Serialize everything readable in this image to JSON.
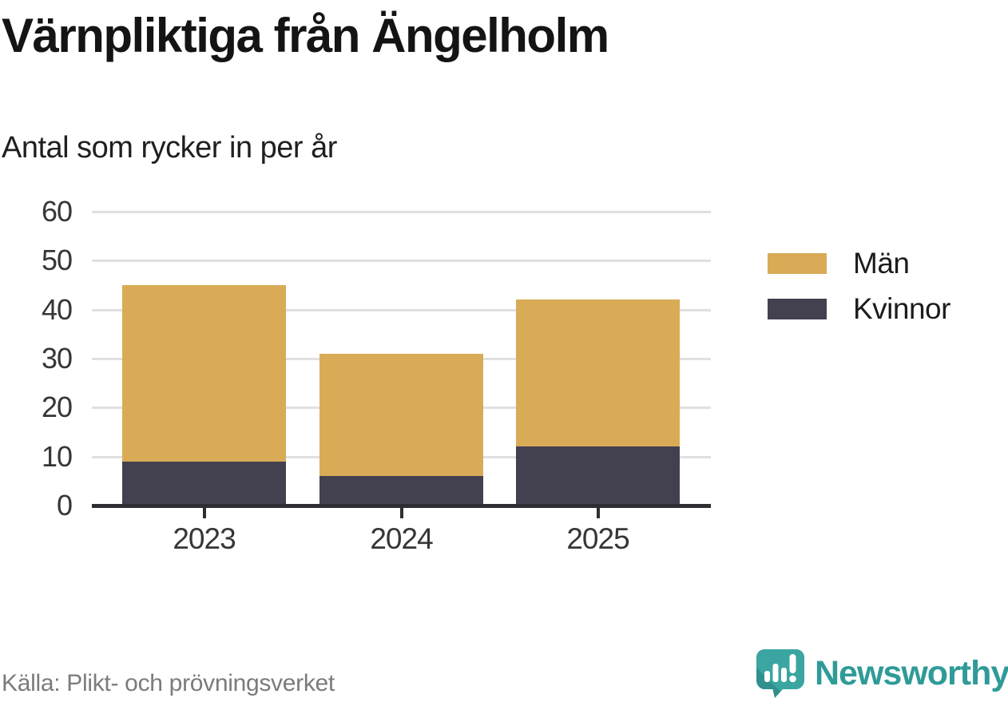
{
  "header": {
    "title": "Värnpliktiga från Ängelholm",
    "subtitle": "Antal som rycker in per år"
  },
  "chart_data": {
    "type": "bar",
    "stacked": true,
    "categories": [
      "2023",
      "2024",
      "2025"
    ],
    "series": [
      {
        "name": "Kvinnor",
        "color": "#434050",
        "values": [
          9,
          6,
          12
        ]
      },
      {
        "name": "Män",
        "color": "#d9ab57",
        "values": [
          36,
          25,
          30
        ]
      }
    ],
    "stack_totals": [
      45,
      31,
      42
    ],
    "y_ticks": [
      0,
      10,
      20,
      30,
      40,
      50,
      60
    ],
    "ylim": [
      0,
      60
    ],
    "xlabel": "",
    "ylabel": "",
    "grid": true,
    "legend_position": "right"
  },
  "legend": {
    "items": [
      {
        "label": "Män",
        "color": "#d9ab57"
      },
      {
        "label": "Kvinnor",
        "color": "#434050"
      }
    ]
  },
  "footer": {
    "source": "Källa: Plikt- och prövningsverket",
    "brand_name": "Newsworthy",
    "logo_icon": "bar-chart-exclamation-speech-bubble-icon"
  },
  "colors": {
    "men": "#d9ab57",
    "women": "#434050",
    "axis": "#2e2d33",
    "gridline": "#e0e0e0",
    "tick_text": "#363636",
    "title_text": "#141414",
    "source_text": "#7b7b7b",
    "brand_teal": "#2f9b98",
    "brand_teal_dark": "#27807d"
  }
}
